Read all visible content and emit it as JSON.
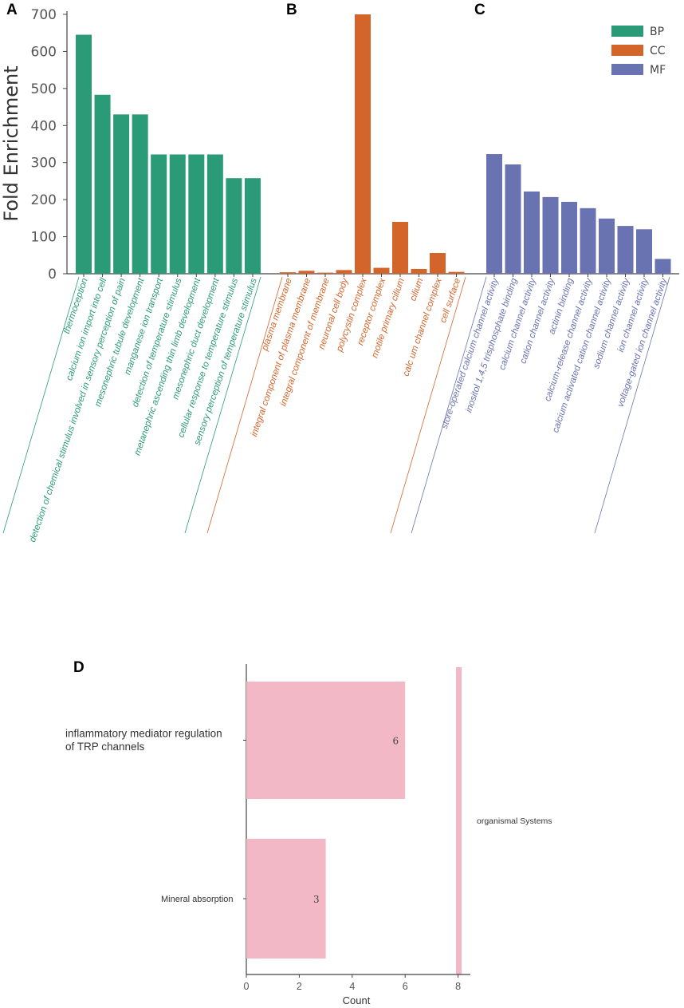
{
  "colors": {
    "BP": "#2a9a77",
    "CC": "#d4652a",
    "MF": "#6a73b1",
    "kegg": "#f2b8c5",
    "axis": "#444444"
  },
  "chart_data": [
    {
      "type": "bar",
      "ylabel": "Fold Enrichment",
      "ylim": [
        0,
        700
      ],
      "yticks": [
        "0",
        "100",
        "200",
        "300",
        "400",
        "500",
        "600",
        "700"
      ],
      "panels": [
        {
          "letter": "A",
          "series": "BP",
          "categories": [
            "thermoception",
            "calcium ion import into cell",
            "detection of chemical stimulus involved in sensory perception of pain",
            "mesonephric tubule development",
            "manganese ion transport",
            "detection of temperature stimulus",
            "metanephric ascending thin limb development",
            "mesonephric duct development",
            "cellular response to temperature stimulus",
            "sensory perception of temperature stimulus"
          ],
          "values": [
            645,
            483,
            430,
            430,
            322,
            322,
            322,
            322,
            258,
            258
          ]
        },
        {
          "letter": "B",
          "series": "CC",
          "categories": [
            "plasma membrane",
            "integral component of plasma membrane",
            "integral component of membrane",
            "neuronal cell body",
            "polycystin complex",
            "receptor complex",
            "motile primary cilium",
            "cilium",
            "calc um channel complex",
            "cell surface"
          ],
          "values": [
            4,
            8,
            3,
            10,
            700,
            16,
            140,
            13,
            56,
            5
          ]
        },
        {
          "letter": "C",
          "series": "MF",
          "categories": [
            "store-operated calcium channel activity",
            "inositol 1,4,5 trisphosphate binding",
            "calcium channel activity",
            "cation channel activity",
            "actinin binding",
            "calcium-release channel activity",
            "calcium activated cation channel activity",
            "sodium channel activity",
            "ion channel activity",
            "voltage-gated ion channel activity"
          ],
          "values": [
            323,
            295,
            222,
            207,
            194,
            177,
            149,
            129,
            120,
            40
          ]
        }
      ],
      "legend": {
        "placement": "top-right",
        "entries": [
          "BP",
          "CC",
          "MF"
        ]
      }
    },
    {
      "type": "bar",
      "orientation": "horizontal",
      "letter": "D",
      "categories": [
        "inflammatory mediator regulation\nof TRP channels",
        "Mineral absorption"
      ],
      "values": [
        6,
        3
      ],
      "value_labels": [
        "6",
        "3"
      ],
      "xlabel": "Count",
      "xlim": [
        0,
        8.4
      ],
      "xticks": [
        "0",
        "2",
        "4",
        "6",
        "8"
      ],
      "facet_label": "organismal Systems"
    }
  ]
}
